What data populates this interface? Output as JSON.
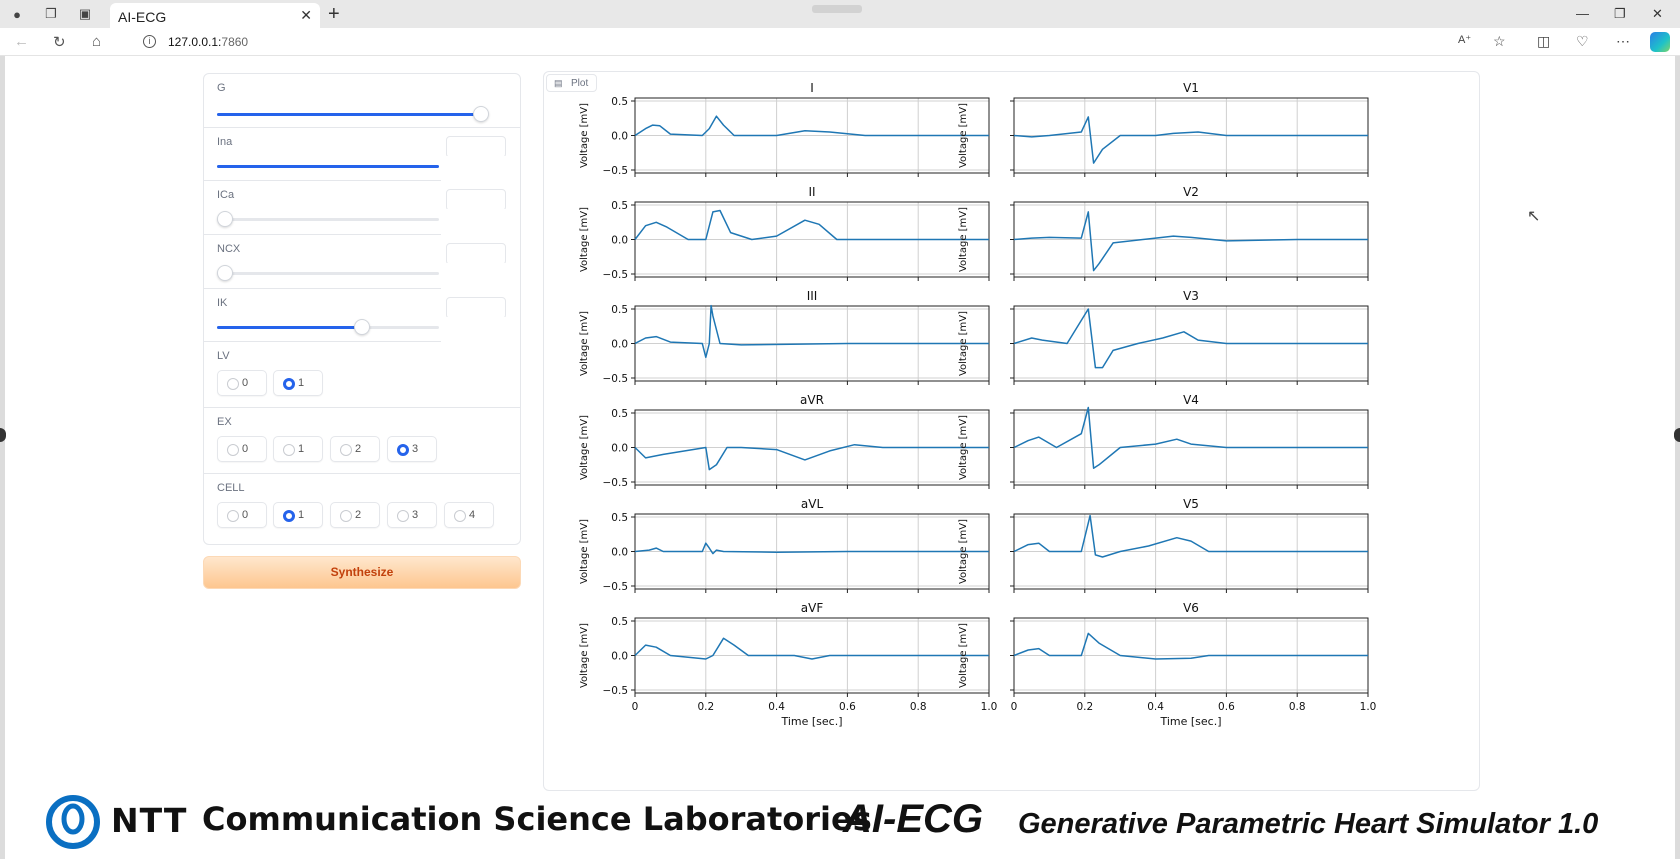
{
  "browser": {
    "tab_title": "AI-ECG",
    "url_host": "127.0.0.1:",
    "url_port": "7860"
  },
  "controls": {
    "sliders": [
      {
        "label": "G",
        "value": 1.0
      },
      {
        "label": "Ina",
        "value": 0.95
      },
      {
        "label": "ICa",
        "value": 0.0
      },
      {
        "label": "NCX",
        "value": 0.0
      },
      {
        "label": "IK",
        "value": 0.6
      }
    ],
    "radio_groups": [
      {
        "label": "LV",
        "options": [
          "0",
          "1"
        ],
        "selected": "1"
      },
      {
        "label": "EX",
        "options": [
          "0",
          "1",
          "2",
          "3"
        ],
        "selected": "3"
      },
      {
        "label": "CELL",
        "options": [
          "0",
          "1",
          "2",
          "3",
          "4"
        ],
        "selected": "1"
      }
    ],
    "synthesize_label": "Synthesize"
  },
  "plot": {
    "badge_label": "Plot"
  },
  "chart_data": {
    "type": "line",
    "ylabel": "Voltage [mV]",
    "xlabel": "Time [sec.]",
    "xlim": [
      0,
      1.0
    ],
    "ylim": [
      -0.5,
      0.6
    ],
    "xticks": [
      "0",
      "0.2",
      "0.4",
      "0.6",
      "0.8",
      "1.0"
    ],
    "yticks": [
      "0.5",
      "0.0",
      "−0.5"
    ],
    "grid": true,
    "color": "#1f77b4",
    "leads": [
      {
        "name": "I",
        "x": [
          0,
          0.03,
          0.05,
          0.07,
          0.1,
          0.19,
          0.21,
          0.23,
          0.25,
          0.28,
          0.4,
          0.48,
          0.55,
          0.65,
          0.8,
          1.0
        ],
        "y": [
          0,
          0.1,
          0.15,
          0.14,
          0.02,
          0.0,
          0.1,
          0.28,
          0.15,
          0.0,
          0.0,
          0.07,
          0.05,
          0.0,
          0.0,
          0.0
        ]
      },
      {
        "name": "V1",
        "x": [
          0,
          0.05,
          0.1,
          0.19,
          0.21,
          0.225,
          0.25,
          0.3,
          0.4,
          0.45,
          0.52,
          0.6,
          0.8,
          1.0
        ],
        "y": [
          0,
          -0.02,
          0.0,
          0.05,
          0.27,
          -0.4,
          -0.2,
          0.0,
          0.0,
          0.03,
          0.05,
          0.0,
          0.0,
          0.0
        ]
      },
      {
        "name": "II",
        "x": [
          0,
          0.03,
          0.06,
          0.09,
          0.15,
          0.2,
          0.22,
          0.24,
          0.27,
          0.33,
          0.4,
          0.48,
          0.52,
          0.57,
          0.7,
          1.0
        ],
        "y": [
          0,
          0.2,
          0.25,
          0.18,
          0.0,
          0.0,
          0.4,
          0.42,
          0.1,
          0.0,
          0.05,
          0.28,
          0.22,
          0.0,
          0.0,
          0.0
        ]
      },
      {
        "name": "V2",
        "x": [
          0,
          0.05,
          0.1,
          0.19,
          0.21,
          0.225,
          0.24,
          0.28,
          0.4,
          0.45,
          0.5,
          0.6,
          0.8,
          1.0
        ],
        "y": [
          0,
          0.02,
          0.03,
          0.02,
          0.4,
          -0.45,
          -0.35,
          -0.05,
          0.02,
          0.05,
          0.03,
          -0.02,
          0.0,
          0.0
        ]
      },
      {
        "name": "III",
        "x": [
          0,
          0.03,
          0.06,
          0.1,
          0.19,
          0.2,
          0.21,
          0.215,
          0.22,
          0.24,
          0.3,
          0.6,
          1.0
        ],
        "y": [
          0,
          0.08,
          0.1,
          0.02,
          0.0,
          -0.2,
          0.0,
          0.55,
          0.4,
          0.0,
          -0.02,
          0.0,
          0.0
        ]
      },
      {
        "name": "V3",
        "x": [
          0,
          0.05,
          0.08,
          0.15,
          0.21,
          0.23,
          0.25,
          0.28,
          0.35,
          0.42,
          0.48,
          0.52,
          0.6,
          1.0
        ],
        "y": [
          0,
          0.08,
          0.05,
          0.0,
          0.5,
          -0.35,
          -0.35,
          -0.1,
          0.0,
          0.08,
          0.17,
          0.05,
          0.0,
          0.0
        ]
      },
      {
        "name": "aVR",
        "x": [
          0,
          0.03,
          0.08,
          0.2,
          0.21,
          0.23,
          0.26,
          0.3,
          0.4,
          0.48,
          0.55,
          0.62,
          0.7,
          1.0
        ],
        "y": [
          0,
          -0.15,
          -0.1,
          0.0,
          -0.32,
          -0.25,
          0.0,
          0.0,
          -0.03,
          -0.18,
          -0.05,
          0.04,
          0.0,
          0.0
        ]
      },
      {
        "name": "V4",
        "x": [
          0,
          0.04,
          0.07,
          0.12,
          0.19,
          0.21,
          0.225,
          0.24,
          0.3,
          0.4,
          0.46,
          0.5,
          0.6,
          1.0
        ],
        "y": [
          0,
          0.1,
          0.15,
          0.0,
          0.2,
          0.58,
          -0.3,
          -0.25,
          0.0,
          0.05,
          0.12,
          0.05,
          0.0,
          0.0
        ]
      },
      {
        "name": "aVL",
        "x": [
          0,
          0.04,
          0.06,
          0.08,
          0.19,
          0.2,
          0.21,
          0.22,
          0.23,
          0.25,
          0.4,
          0.6,
          1.0
        ],
        "y": [
          0,
          0.02,
          0.05,
          0.0,
          0.0,
          0.12,
          0.05,
          -0.03,
          0.02,
          0.0,
          -0.01,
          0.0,
          0.0
        ]
      },
      {
        "name": "V5",
        "x": [
          0,
          0.04,
          0.07,
          0.1,
          0.19,
          0.215,
          0.23,
          0.25,
          0.3,
          0.38,
          0.46,
          0.5,
          0.55,
          1.0
        ],
        "y": [
          0,
          0.1,
          0.12,
          0.0,
          0.0,
          0.52,
          -0.05,
          -0.08,
          0.0,
          0.08,
          0.2,
          0.15,
          0.0,
          0.0
        ]
      },
      {
        "name": "aVF",
        "x": [
          0,
          0.03,
          0.06,
          0.1,
          0.2,
          0.22,
          0.25,
          0.28,
          0.32,
          0.45,
          0.5,
          0.55,
          0.6,
          1.0
        ],
        "y": [
          0,
          0.15,
          0.12,
          0.0,
          -0.05,
          0.0,
          0.25,
          0.15,
          0.0,
          0.0,
          -0.05,
          0.0,
          0.0,
          0.0
        ]
      },
      {
        "name": "V6",
        "x": [
          0,
          0.04,
          0.07,
          0.1,
          0.19,
          0.21,
          0.24,
          0.3,
          0.4,
          0.5,
          0.55,
          1.0
        ],
        "y": [
          0,
          0.08,
          0.1,
          0.0,
          0.0,
          0.32,
          0.18,
          0.0,
          -0.05,
          -0.04,
          0.0,
          0.0
        ]
      }
    ]
  },
  "footer": {
    "org_short": "NTT",
    "org_lab": "Communication Science Laboratories",
    "app_name": "AI-ECG",
    "app_subtitle": "Generative Parametric Heart Simulator 1.0"
  }
}
